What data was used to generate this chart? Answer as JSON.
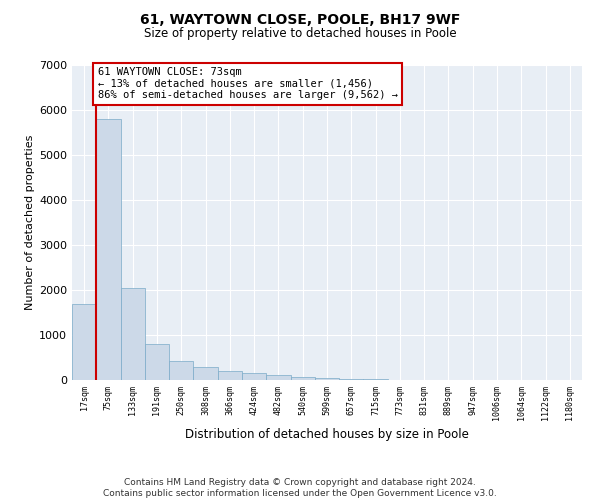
{
  "title": "61, WAYTOWN CLOSE, POOLE, BH17 9WF",
  "subtitle": "Size of property relative to detached houses in Poole",
  "xlabel": "Distribution of detached houses by size in Poole",
  "ylabel": "Number of detached properties",
  "bar_color": "#ccd9e8",
  "bar_edge_color": "#7aaac8",
  "highlight_line_color": "#cc0000",
  "annotation_box_edge_color": "#cc0000",
  "annotation_text": "61 WAYTOWN CLOSE: 73sqm\n← 13% of detached houses are smaller (1,456)\n86% of semi-detached houses are larger (9,562) →",
  "bin_labels": [
    "17sqm",
    "75sqm",
    "133sqm",
    "191sqm",
    "250sqm",
    "308sqm",
    "366sqm",
    "424sqm",
    "482sqm",
    "540sqm",
    "599sqm",
    "657sqm",
    "715sqm",
    "773sqm",
    "831sqm",
    "889sqm",
    "947sqm",
    "1006sqm",
    "1064sqm",
    "1122sqm",
    "1180sqm"
  ],
  "counts": [
    1700,
    5800,
    2050,
    800,
    420,
    280,
    200,
    155,
    115,
    75,
    50,
    30,
    18,
    10,
    5,
    3,
    2,
    1,
    1,
    1,
    0
  ],
  "ylim": [
    0,
    7000
  ],
  "yticks": [
    0,
    1000,
    2000,
    3000,
    4000,
    5000,
    6000,
    7000
  ],
  "footer_line1": "Contains HM Land Registry data © Crown copyright and database right 2024.",
  "footer_line2": "Contains public sector information licensed under the Open Government Licence v3.0.",
  "background_color": "#ffffff",
  "plot_bg_color": "#e8eef5",
  "red_line_bar_index": 1,
  "annotation_bar_index": 1,
  "title_fontsize": 10,
  "subtitle_fontsize": 8.5
}
